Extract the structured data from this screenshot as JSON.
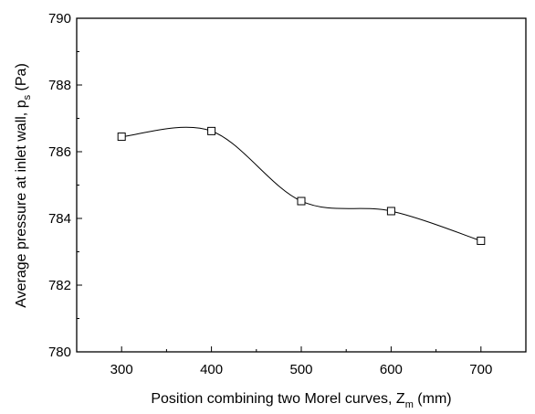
{
  "chart_data": {
    "type": "line",
    "title": "",
    "xlabel": {
      "main": "Position combining two Morel curves, Z",
      "sub": "m",
      "suffix": " (mm)"
    },
    "ylabel": {
      "main": "Average pressure at inlet wall, p",
      "sub": "s",
      "suffix": " (Pa)"
    },
    "xlim": [
      250,
      750
    ],
    "ylim": [
      780,
      790
    ],
    "xticks": [
      300,
      400,
      500,
      600,
      700
    ],
    "yticks": [
      780,
      782,
      784,
      786,
      788,
      790
    ],
    "curve": "smooth",
    "marker": "open-square",
    "series": [
      {
        "x": [
          300,
          400,
          500,
          600,
          700
        ],
        "values": [
          786.45,
          786.62,
          784.52,
          784.22,
          783.33
        ]
      }
    ]
  }
}
